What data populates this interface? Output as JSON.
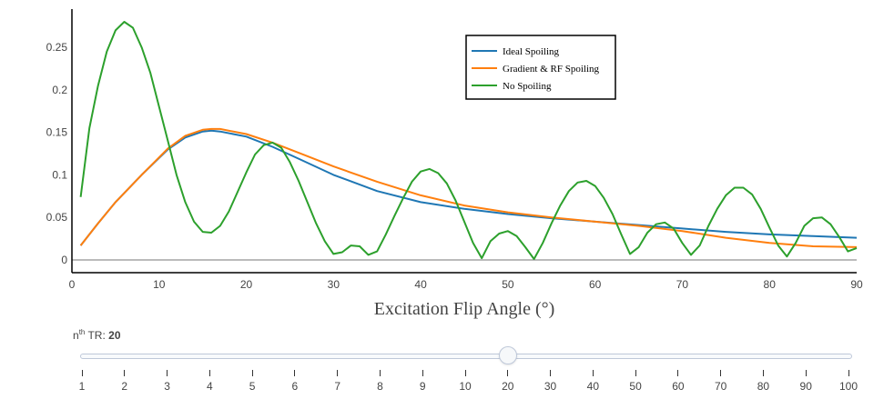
{
  "chart_data": {
    "type": "line",
    "xlabel": "Excitation Flip Angle (°)",
    "ylabel": "",
    "xlim": [
      0,
      90
    ],
    "ylim": [
      -0.015,
      0.295
    ],
    "x_ticks": [
      0,
      10,
      20,
      30,
      40,
      50,
      60,
      70,
      80,
      90
    ],
    "y_ticks": [
      0,
      0.05,
      0.1,
      0.15,
      0.2,
      0.25
    ],
    "y_tick_labels": [
      "0",
      "0.05",
      "0.1",
      "0.15",
      "0.2",
      "0.25"
    ],
    "grid": false,
    "legend_position": "top-right",
    "series": [
      {
        "name": "Ideal Spoiling",
        "color": "#1f77b4",
        "x": [
          1,
          3,
          5,
          8,
          11,
          13,
          15,
          16,
          17,
          20,
          23,
          26,
          30,
          35,
          40,
          45,
          50,
          55,
          60,
          65,
          70,
          75,
          80,
          85,
          90
        ],
        "y": [
          0.017,
          0.043,
          0.068,
          0.1,
          0.13,
          0.144,
          0.151,
          0.152,
          0.151,
          0.145,
          0.133,
          0.119,
          0.1,
          0.081,
          0.068,
          0.06,
          0.054,
          0.049,
          0.045,
          0.041,
          0.037,
          0.033,
          0.03,
          0.028,
          0.026
        ]
      },
      {
        "name": "Gradient & RF Spoiling",
        "color": "#ff7f0e",
        "x": [
          1,
          3,
          5,
          8,
          11,
          13,
          15,
          16,
          17,
          20,
          23,
          26,
          30,
          35,
          40,
          45,
          50,
          55,
          60,
          65,
          70,
          75,
          80,
          85,
          90
        ],
        "y": [
          0.017,
          0.043,
          0.068,
          0.1,
          0.131,
          0.146,
          0.153,
          0.154,
          0.154,
          0.148,
          0.138,
          0.126,
          0.11,
          0.092,
          0.076,
          0.064,
          0.056,
          0.05,
          0.045,
          0.04,
          0.034,
          0.026,
          0.02,
          0.016,
          0.015
        ]
      },
      {
        "name": "No Spoiling",
        "color": "#2ca02c",
        "x": [
          1,
          2,
          3,
          4,
          5,
          6,
          7,
          8,
          9,
          10,
          11,
          12,
          13,
          14,
          15,
          16,
          17,
          18,
          19,
          20,
          21,
          22,
          23,
          24,
          25,
          26,
          27,
          28,
          29,
          30,
          31,
          32,
          33,
          34,
          35,
          36,
          37,
          38,
          39,
          40,
          41,
          42,
          43,
          44,
          45,
          46,
          47,
          48,
          49,
          50,
          51,
          52,
          53,
          54,
          55,
          56,
          57,
          58,
          59,
          60,
          61,
          62,
          63,
          64,
          65,
          66,
          67,
          68,
          69,
          70,
          71,
          72,
          73,
          74,
          75,
          76,
          77,
          78,
          79,
          80,
          81,
          82,
          83,
          84,
          85,
          86,
          87,
          88,
          89,
          90
        ],
        "y": [
          0.074,
          0.155,
          0.205,
          0.245,
          0.27,
          0.28,
          0.273,
          0.25,
          0.22,
          0.18,
          0.14,
          0.1,
          0.068,
          0.045,
          0.033,
          0.032,
          0.04,
          0.057,
          0.08,
          0.103,
          0.124,
          0.135,
          0.138,
          0.132,
          0.115,
          0.093,
          0.068,
          0.043,
          0.022,
          0.007,
          0.009,
          0.017,
          0.016,
          0.006,
          0.01,
          0.03,
          0.052,
          0.073,
          0.092,
          0.104,
          0.107,
          0.102,
          0.09,
          0.07,
          0.045,
          0.02,
          0.002,
          0.022,
          0.031,
          0.034,
          0.028,
          0.015,
          0.001,
          0.02,
          0.043,
          0.064,
          0.081,
          0.091,
          0.093,
          0.087,
          0.073,
          0.054,
          0.03,
          0.007,
          0.015,
          0.032,
          0.042,
          0.044,
          0.037,
          0.02,
          0.006,
          0.017,
          0.04,
          0.06,
          0.076,
          0.085,
          0.085,
          0.077,
          0.06,
          0.038,
          0.017,
          0.004,
          0.02,
          0.04,
          0.049,
          0.05,
          0.042,
          0.027,
          0.01,
          0.014
        ]
      }
    ]
  },
  "slider": {
    "label_prefix": "n",
    "label_sup": "th",
    "label_suffix": " TR: ",
    "value": "20",
    "steps": [
      "1",
      "2",
      "3",
      "4",
      "5",
      "6",
      "7",
      "8",
      "9",
      "10",
      "20",
      "30",
      "40",
      "50",
      "60",
      "70",
      "80",
      "90",
      "100"
    ],
    "active_index": 10
  }
}
